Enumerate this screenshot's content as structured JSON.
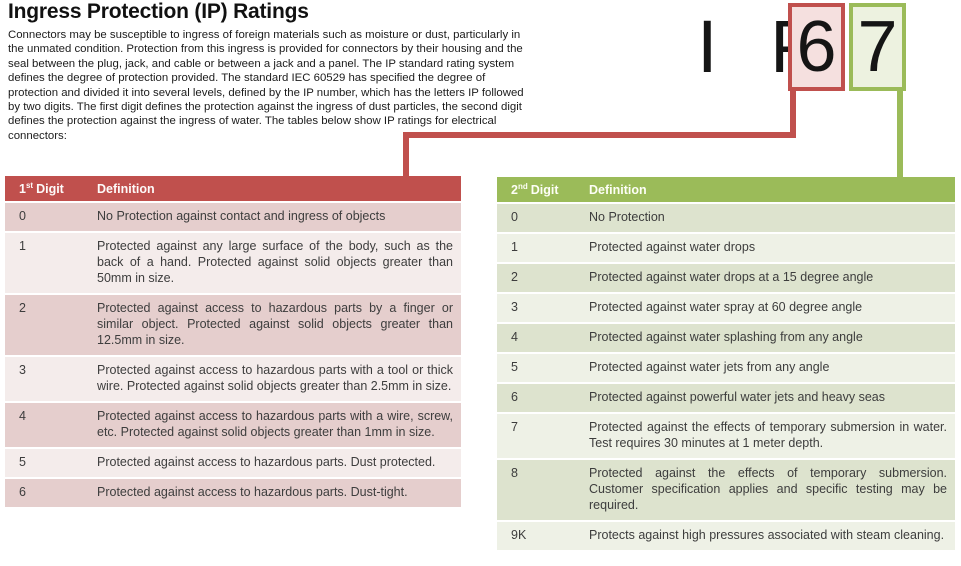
{
  "page": {
    "title": "Ingress Protection (IP) Ratings",
    "intro": "Connectors may be susceptible to ingress of foreign materials such as moisture or dust, particularly in the unmated condition. Protection from this ingress is provided for connectors by their housing and the seal between the plug, jack, and cable or between a jack and a panel. The IP standard rating system defines the degree of protection provided. The standard IEC 60529 has specified the degree of protection and divided it into several levels, defined by the IP number, which has the letters IP followed by two digits. The first digit defines the protection against the ingress of dust particles, the second digit defines the protection against the ingress of water. The tables below show IP ratings for electrical connectors:"
  },
  "ip_graphic": {
    "letters": "I P",
    "first_digit": "6",
    "second_digit": "7",
    "first_digit_accent": "#c0504d",
    "first_digit_fill": "#f5e0df",
    "second_digit_accent": "#9bbb59",
    "second_digit_fill": "#edf2e0"
  },
  "first_digit_table": {
    "accent_color": "#c0504d",
    "band_dark": "#e5cecd",
    "band_light": "#f4eceb",
    "header": {
      "num": "1",
      "ordinal": "st",
      "label": "Digit",
      "definition": "Definition"
    },
    "rows": [
      {
        "digit": "0",
        "definition": "No Protection against contact and ingress of objects"
      },
      {
        "digit": "1",
        "definition": "Protected against any large surface of the body, such as the back of a hand. Protected against solid objects greater than 50mm in size."
      },
      {
        "digit": "2",
        "definition": "Protected against access to hazardous parts by a finger or similar object. Protected against solid objects greater than 12.5mm in size."
      },
      {
        "digit": "3",
        "definition": "Protected against access to hazardous parts with a tool or thick wire. Protected against solid objects greater than 2.5mm in size."
      },
      {
        "digit": "4",
        "definition": "Protected against access to hazardous parts with a wire, screw, etc. Protected against solid objects greater than 1mm in size."
      },
      {
        "digit": "5",
        "definition": "Protected against access to hazardous parts. Dust protected."
      },
      {
        "digit": "6",
        "definition": "Protected against access to hazardous parts. Dust-tight."
      }
    ]
  },
  "second_digit_table": {
    "accent_color": "#9bbb59",
    "band_dark": "#dde3ce",
    "band_light": "#eef1e6",
    "header": {
      "num": "2",
      "ordinal": "nd",
      "label": "Digit",
      "definition": "Definition"
    },
    "rows": [
      {
        "digit": "0",
        "definition": "No Protection"
      },
      {
        "digit": "1",
        "definition": "Protected against water drops"
      },
      {
        "digit": "2",
        "definition": "Protected against water drops at a 15 degree angle"
      },
      {
        "digit": "3",
        "definition": "Protected against water spray at 60 degree angle"
      },
      {
        "digit": "4",
        "definition": "Protected against water splashing from any angle"
      },
      {
        "digit": "5",
        "definition": "Protected against water jets from any angle"
      },
      {
        "digit": "6",
        "definition": "Protected against powerful water jets and heavy seas"
      },
      {
        "digit": "7",
        "definition": "Protected against the effects of temporary submersion in water. Test requires 30 minutes at 1 meter depth."
      },
      {
        "digit": "8",
        "definition": "Protected against the effects of temporary submersion. Customer specification applies and specific testing may be required."
      },
      {
        "digit": "9K",
        "definition": "Protects against high pressures associated with steam cleaning."
      }
    ]
  }
}
